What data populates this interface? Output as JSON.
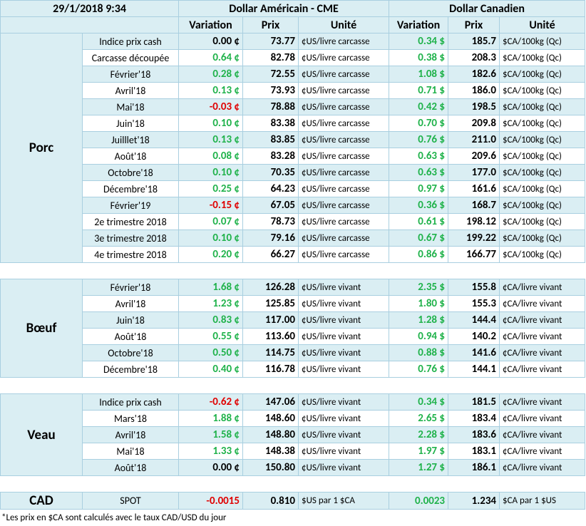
{
  "header": {
    "datetime": "29/1/2018 9:34",
    "usd_title": "Dollar Américain - CME",
    "cad_title": "Dollar Canadien",
    "columns": [
      "Variation",
      "Prix",
      "Unité",
      "Variation",
      "Prix",
      "Unité"
    ]
  },
  "sections": [
    {
      "name": "Porc",
      "rows": [
        [
          "Indice prix cash",
          "0.00 ¢",
          "73.77",
          "¢US/livre carcasse",
          "0.34 $",
          "185.7",
          "$CA/100kg (Qc)"
        ],
        [
          "Carcasse découpée",
          "0.64 ¢",
          "82.78",
          "¢US/livre carcasse",
          "0.38 $",
          "208.3",
          "$CA/100kg (Qc)"
        ],
        [
          "Février'18",
          "0.28 ¢",
          "72.55",
          "¢US/livre carcasse",
          "1.08 $",
          "182.6",
          "$CA/100kg (Qc)"
        ],
        [
          "Avril'18",
          "0.13 ¢",
          "73.93",
          "¢US/livre carcasse",
          "0.71 $",
          "186.0",
          "$CA/100kg (Qc)"
        ],
        [
          "Mai'18",
          "-0.03 ¢",
          "78.88",
          "¢US/livre carcasse",
          "0.42 $",
          "198.5",
          "$CA/100kg (Qc)"
        ],
        [
          "Juin'18",
          "0.10 ¢",
          "83.38",
          "¢US/livre carcasse",
          "0.70 $",
          "209.8",
          "$CA/100kg (Qc)"
        ],
        [
          "Juilllet'18",
          "0.13 ¢",
          "83.85",
          "¢US/livre carcasse",
          "0.76 $",
          "211.0",
          "$CA/100kg (Qc)"
        ],
        [
          "Août'18",
          "0.08 ¢",
          "83.28",
          "¢US/livre carcasse",
          "0.63 $",
          "209.6",
          "$CA/100kg (Qc)"
        ],
        [
          "Octobre'18",
          "0.10 ¢",
          "70.35",
          "¢US/livre carcasse",
          "0.63 $",
          "177.0",
          "$CA/100kg (Qc)"
        ],
        [
          "Décembre'18",
          "0.25 ¢",
          "64.23",
          "¢US/livre carcasse",
          "0.97 $",
          "161.6",
          "$CA/100kg (Qc)"
        ],
        [
          "Février'19",
          "-0.15 ¢",
          "67.05",
          "¢US/livre carcasse",
          "0.36 $",
          "168.7",
          "$CA/100kg (Qc)"
        ],
        [
          "2e trimestre 2018",
          "0.07 ¢",
          "78.73",
          "¢US/livre carcasse",
          "0.61 $",
          "198.12",
          "$CA/100kg (Qc)"
        ],
        [
          "3e trimestre 2018",
          "0.10 ¢",
          "79.16",
          "¢US/livre carcasse",
          "0.67 $",
          "199.22",
          "$CA/100kg (Qc)"
        ],
        [
          "4e trimestre 2018",
          "0.20 ¢",
          "66.27",
          "¢US/livre carcasse",
          "0.86 $",
          "166.77",
          "$CA/100kg (Qc)"
        ]
      ]
    },
    {
      "name": "Bœuf",
      "rows": [
        [
          "Février'18",
          "1.68 ¢",
          "126.28",
          "¢US/livre vivant",
          "2.35 $",
          "155.8",
          "¢CA/livre vivant"
        ],
        [
          "Avril'18",
          "1.23 ¢",
          "125.85",
          "¢US/livre vivant",
          "1.80 $",
          "155.3",
          "¢CA/livre vivant"
        ],
        [
          "Juin'18",
          "0.83 ¢",
          "117.00",
          "¢US/livre vivant",
          "1.28 $",
          "144.4",
          "¢CA/livre vivant"
        ],
        [
          "Août'18",
          "0.55 ¢",
          "113.60",
          "¢US/livre vivant",
          "0.94 $",
          "140.2",
          "¢CA/livre vivant"
        ],
        [
          "Octobre'18",
          "0.50 ¢",
          "114.75",
          "¢US/livre vivant",
          "0.88 $",
          "141.6",
          "¢CA/livre vivant"
        ],
        [
          "Décembre'18",
          "0.40 ¢",
          "116.78",
          "¢US/livre vivant",
          "0.76 $",
          "144.1",
          "¢CA/livre vivant"
        ]
      ]
    },
    {
      "name": "Veau",
      "rows": [
        [
          "Indice prix cash",
          "-0.62 ¢",
          "147.06",
          "¢US/livre vivant",
          "0.34 $",
          "181.5",
          "¢CA/livre vivant"
        ],
        [
          "Mars'18",
          "1.88 ¢",
          "148.60",
          "¢US/livre vivant",
          "2.65 $",
          "183.4",
          "¢CA/livre vivant"
        ],
        [
          "Avril'18",
          "1.58 ¢",
          "148.80",
          "¢US/livre vivant",
          "2.28 $",
          "183.6",
          "¢CA/livre vivant"
        ],
        [
          "Mai'18",
          "1.33 ¢",
          "148.38",
          "¢US/livre vivant",
          "1.97 $",
          "183.1",
          "¢CA/livre vivant"
        ],
        [
          "Août'18",
          "0.00 ¢",
          "150.80",
          "¢US/livre vivant",
          "1.27 $",
          "186.1",
          "¢CA/livre vivant"
        ]
      ]
    }
  ],
  "cad": {
    "name": "CAD",
    "row": [
      "SPOT",
      "-0.0015",
      "0.810",
      "$US par 1 $CA",
      "0.0023",
      "1.234",
      "$CA par 1 $US"
    ]
  },
  "footnote": "*Les  prix en $CA sont calculés avec le taux CAD/USD du jour"
}
